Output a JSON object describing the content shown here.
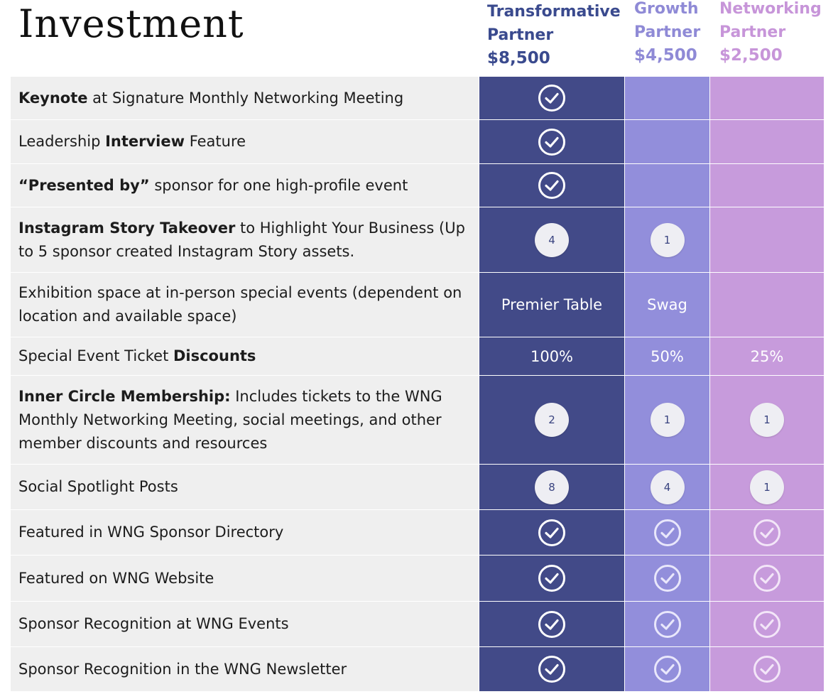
{
  "title": "Investment",
  "tiers": [
    {
      "name_line1": "Transformative",
      "name_line2": "Partner",
      "price": "$8,500"
    },
    {
      "name_line1": "Growth",
      "name_line2": "Partner",
      "price": "$4,500"
    },
    {
      "name_line1": "Networking",
      "name_line2": "Partner",
      "price": "$2,500"
    }
  ],
  "colors": {
    "transformative": "#424a88",
    "growth": "#928edb",
    "networking": "#c79bdc",
    "label_bg": "#efefef"
  },
  "rows": [
    {
      "parts": [
        {
          "bold": "Keynote"
        },
        {
          "text": " at Signature Monthly Networking Meeting"
        }
      ],
      "cells": [
        "check",
        "",
        ""
      ]
    },
    {
      "parts": [
        {
          "text": "Leadership "
        },
        {
          "bold": "Interview"
        },
        {
          "text": " Feature"
        }
      ],
      "cells": [
        "check",
        "",
        ""
      ]
    },
    {
      "parts": [
        {
          "bold": "“Presented by”"
        },
        {
          "text": " sponsor for one high-profile event"
        }
      ],
      "cells": [
        "check",
        "",
        ""
      ]
    },
    {
      "parts": [
        {
          "bold": "Instagram Story Takeover"
        },
        {
          "text": " to Highlight Your Business (Up to 5 sponsor created Instagram Story assets."
        }
      ],
      "cells": [
        "circle:4",
        "circle:1",
        ""
      ]
    },
    {
      "parts": [
        {
          "text": "Exhibition space at in-person special events (dependent on location and available space)"
        }
      ],
      "cells": [
        "text:Premier Table",
        "text:Swag",
        ""
      ]
    },
    {
      "parts": [
        {
          "text": "Special Event Ticket "
        },
        {
          "bold": "Discounts"
        }
      ],
      "cells": [
        "text:100%",
        "text:50%",
        "text:25%"
      ]
    },
    {
      "parts": [
        {
          "bold": "Inner Circle Membership:"
        },
        {
          "text": " Includes tickets to the WNG Monthly Networking Meeting, social meetings, and other member discounts and resources"
        }
      ],
      "cells": [
        "circle:2",
        "circle:1",
        "circle:1"
      ]
    },
    {
      "parts": [
        {
          "text": "Social Spotlight Posts"
        }
      ],
      "cells": [
        "circle:8",
        "circle:4",
        "circle:1"
      ]
    },
    {
      "parts": [
        {
          "text": "Featured in WNG Sponsor Directory"
        }
      ],
      "cells": [
        "check",
        "check",
        "check"
      ]
    },
    {
      "parts": [
        {
          "text": "Featured on WNG Website"
        }
      ],
      "cells": [
        "check",
        "check",
        "check"
      ]
    },
    {
      "parts": [
        {
          "text": "Sponsor Recognition at WNG Events"
        }
      ],
      "cells": [
        "check",
        "check",
        "check"
      ]
    },
    {
      "parts": [
        {
          "text": "Sponsor Recognition in the WNG Newsletter"
        }
      ],
      "cells": [
        "check",
        "check",
        "check"
      ]
    }
  ]
}
